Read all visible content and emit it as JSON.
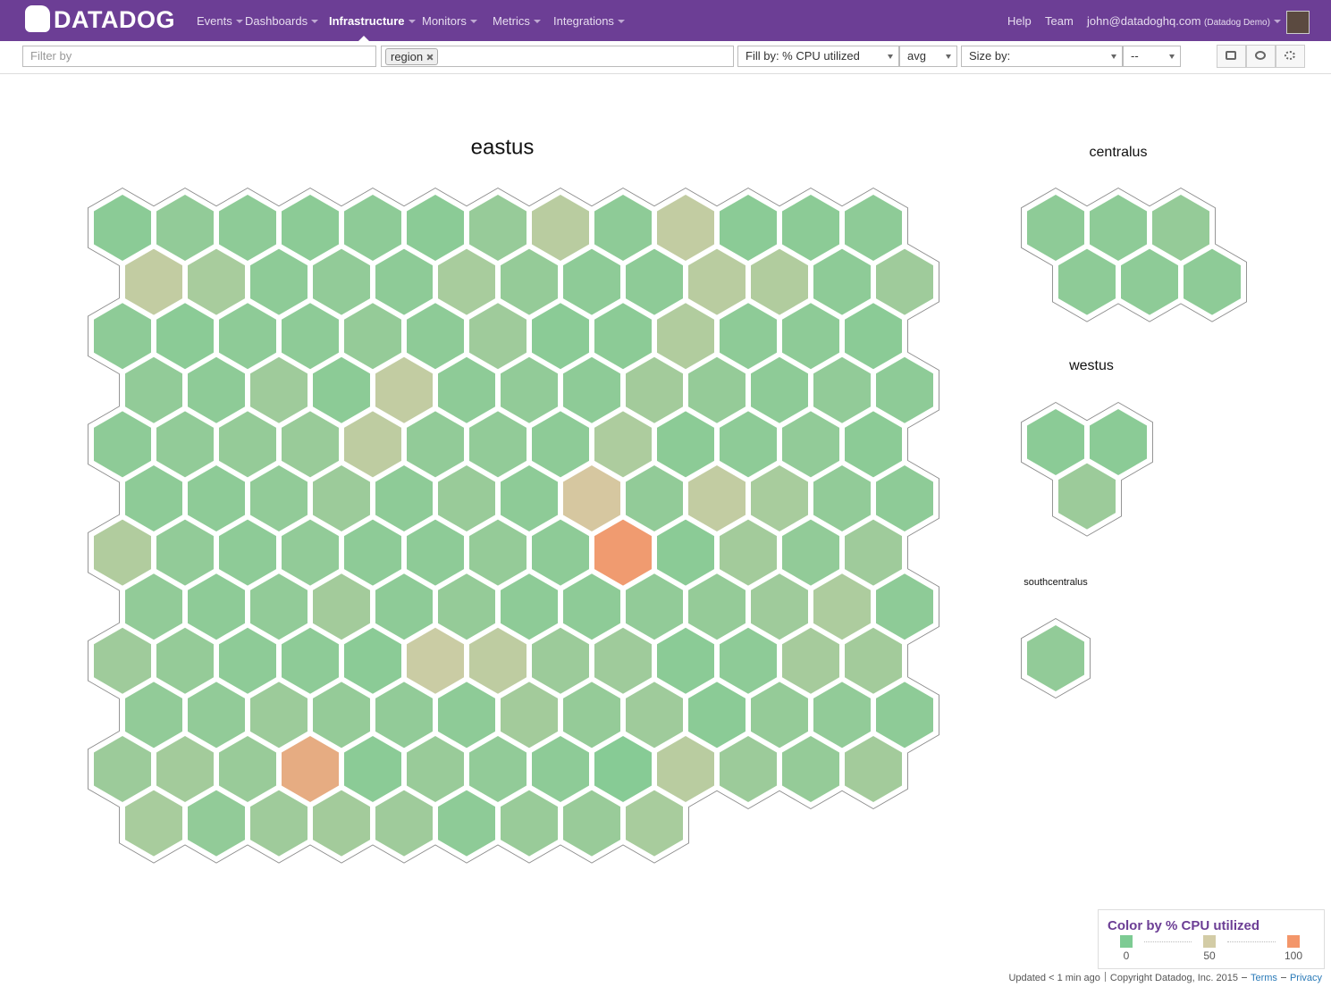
{
  "header": {
    "logo": "DATADOG",
    "nav": [
      "Events",
      "Dashboards",
      "Infrastructure",
      "Monitors",
      "Metrics",
      "Integrations"
    ],
    "help": "Help",
    "team": "Team",
    "user": "john@datadoghq.com",
    "org": "(Datadog Demo)"
  },
  "toolbar": {
    "filter_placeholder": "Filter by",
    "group_tag": "region",
    "fill_by": "Fill by: % CPU utilized",
    "aggregation": "avg",
    "size_by": "Size by:",
    "size_value": "--"
  },
  "hostmap": {
    "groups": [
      {
        "name": "eastus",
        "rows": [
          [
            8,
            12,
            10,
            9,
            10,
            8,
            15,
            35,
            10,
            40,
            8,
            9,
            10
          ],
          [
            40,
            25,
            10,
            12,
            10,
            25,
            14,
            10,
            10,
            35,
            30,
            10,
            20
          ],
          [
            10,
            8,
            10,
            10,
            14,
            10,
            20,
            8,
            9,
            30,
            10,
            10,
            8
          ],
          [
            12,
            10,
            20,
            9,
            40,
            10,
            12,
            10,
            22,
            14,
            10,
            12,
            10
          ],
          [
            10,
            12,
            14,
            16,
            38,
            12,
            12,
            10,
            28,
            9,
            10,
            12,
            9
          ],
          [
            10,
            10,
            12,
            18,
            10,
            16,
            10,
            55,
            12,
            40,
            25,
            12,
            10
          ],
          [
            30,
            12,
            10,
            12,
            10,
            10,
            14,
            10,
            95,
            8,
            22,
            12,
            20
          ],
          [
            12,
            10,
            12,
            22,
            10,
            14,
            10,
            10,
            12,
            14,
            20,
            28,
            10
          ],
          [
            20,
            14,
            10,
            10,
            8,
            45,
            38,
            18,
            20,
            8,
            10,
            24,
            22
          ],
          [
            12,
            12,
            18,
            14,
            12,
            10,
            22,
            14,
            20,
            8,
            14,
            12,
            10
          ],
          [
            18,
            22,
            16,
            80,
            8,
            16,
            12,
            10,
            6,
            35,
            18,
            14,
            22
          ],
          [
            25,
            12,
            20,
            22,
            20,
            10,
            16,
            16,
            25
          ]
        ]
      },
      {
        "name": "centralus",
        "rows": [
          [
            10,
            10,
            14
          ],
          [
            10,
            10,
            10
          ]
        ]
      },
      {
        "name": "westus",
        "rows": [
          [
            8,
            8
          ],
          [
            18
          ]
        ]
      },
      {
        "name": "southcentralus",
        "rows": [
          [
            12
          ]
        ]
      }
    ]
  },
  "legend": {
    "title": "Color by % CPU utilized",
    "stops": [
      {
        "value": 0,
        "color": "#7dcb93"
      },
      {
        "value": 50,
        "color": "#d3cca6"
      },
      {
        "value": 100,
        "color": "#f3966a"
      }
    ]
  },
  "footer": {
    "updated": "Updated < 1 min ago",
    "copyright": "Copyright Datadog, Inc. 2015",
    "terms": "Terms",
    "privacy": "Privacy"
  }
}
